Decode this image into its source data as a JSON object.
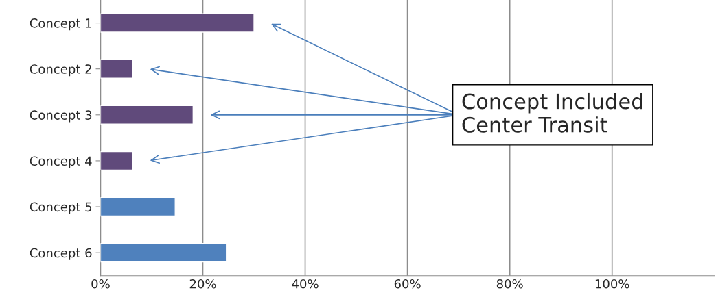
{
  "chart_data": {
    "type": "bar",
    "orientation": "horizontal",
    "categories": [
      "Concept 1",
      "Concept 2",
      "Concept 3",
      "Concept 4",
      "Concept 5",
      "Concept 6"
    ],
    "values": [
      30,
      6.3,
      18.1,
      6.3,
      14.6,
      24.6
    ],
    "colors": [
      "#604a7b",
      "#604a7b",
      "#604a7b",
      "#604a7b",
      "#4f81bd",
      "#4f81bd"
    ],
    "xlim": [
      0,
      120
    ],
    "xticks": [
      {
        "value": 0,
        "label": "0%"
      },
      {
        "value": 20,
        "label": "20%"
      },
      {
        "value": 40,
        "label": "40%"
      },
      {
        "value": 60,
        "label": "60%"
      },
      {
        "value": 80,
        "label": "80%"
      },
      {
        "value": 100,
        "label": "100%"
      }
    ],
    "grid": "x",
    "annotations": [
      "Concept Included\nCenter Transit"
    ]
  }
}
